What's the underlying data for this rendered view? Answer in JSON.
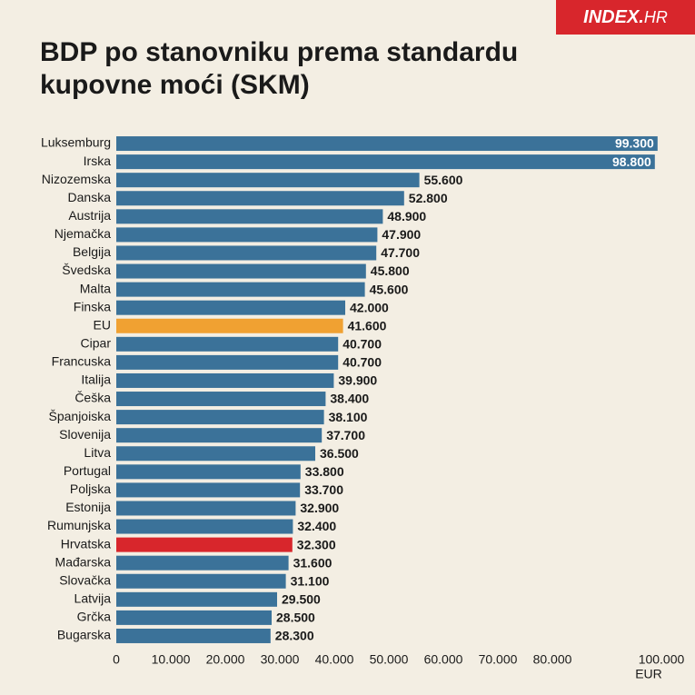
{
  "brand": {
    "main": "INDEX",
    "suffix": "HR"
  },
  "chart_data": {
    "type": "hbar",
    "title": "BDP po stanovniku prema standardu kupovne moći (SKM)",
    "categories": [
      "Luksemburg",
      "Irska",
      "Nizozemska",
      "Danska",
      "Austrija",
      "Njemačka",
      "Belgija",
      "Švedska",
      "Malta",
      "Finska",
      "EU",
      "Cipar",
      "Francuska",
      "Italija",
      "Češka",
      "Španjoiska",
      "Slovenija",
      "Litva",
      "Portugal",
      "Poljska",
      "Estonija",
      "Rumunjska",
      "Hrvatska",
      "Mađarska",
      "Slovačka",
      "Latvija",
      "Grčka",
      "Bugarska"
    ],
    "values": [
      99300,
      98800,
      55600,
      52800,
      48900,
      47900,
      47700,
      45800,
      45600,
      42000,
      41600,
      40700,
      40700,
      39900,
      38400,
      38100,
      37700,
      36500,
      33800,
      33700,
      32900,
      32400,
      32300,
      31600,
      31100,
      29500,
      28500,
      28300
    ],
    "value_labels": [
      "99.300",
      "98.800",
      "55.600",
      "52.800",
      "48.900",
      "47.900",
      "47.700",
      "45.800",
      "45.600",
      "42.000",
      "41.600",
      "40.700",
      "40.700",
      "39.900",
      "38.400",
      "38.100",
      "37.700",
      "36.500",
      "33.800",
      "33.700",
      "32.900",
      "32.400",
      "32.300",
      "31.600",
      "31.100",
      "29.500",
      "28.500",
      "28.300"
    ],
    "colors": [
      "#3b7299",
      "#3b7299",
      "#3b7299",
      "#3b7299",
      "#3b7299",
      "#3b7299",
      "#3b7299",
      "#3b7299",
      "#3b7299",
      "#3b7299",
      "#f0a132",
      "#3b7299",
      "#3b7299",
      "#3b7299",
      "#3b7299",
      "#3b7299",
      "#3b7299",
      "#3b7299",
      "#3b7299",
      "#3b7299",
      "#3b7299",
      "#3b7299",
      "#d8262c",
      "#3b7299",
      "#3b7299",
      "#3b7299",
      "#3b7299",
      "#3b7299"
    ],
    "xlim": [
      0,
      100000
    ],
    "xticks": [
      0,
      {
        "value": 10000,
        "label": "10.000"
      },
      {
        "value": 20000,
        "label": "20.000"
      },
      {
        "value": 30000,
        "label": "30.000"
      },
      {
        "value": 40000,
        "label": "40.000"
      },
      {
        "value": 50000,
        "label": "50.000"
      },
      {
        "value": 60000,
        "label": "60.000"
      },
      {
        "value": 70000,
        "label": "70.000"
      },
      {
        "value": 80000,
        "label": "80.000"
      },
      {
        "value": 100000,
        "label": "100.000"
      }
    ],
    "x_unit": "EUR"
  }
}
